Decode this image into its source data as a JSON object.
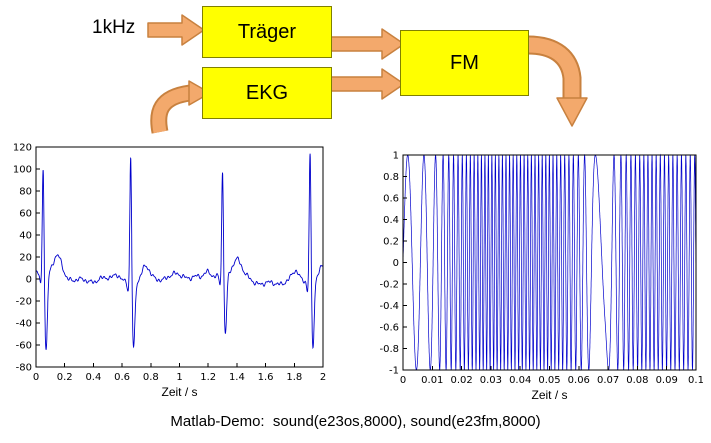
{
  "diagram": {
    "input_label": "1kHz",
    "blocks": {
      "traeger": "Träger",
      "ekg": "EKG",
      "fm": "FM"
    },
    "colors": {
      "box_fill": "#FFFF00",
      "box_border": "#808000",
      "arrow_fill": "#F3A96C",
      "arrow_border": "#C8813F"
    }
  },
  "caption": "Matlab-Demo:  sound(e23os,8000), sound(e23fm,8000)",
  "chart_data": [
    {
      "type": "line",
      "signal": "ekg",
      "title": "",
      "xlabel": "Zeit / s",
      "ylabel": "",
      "xlim": [
        0,
        2
      ],
      "ylim": [
        -80,
        120
      ],
      "xtick_values": [
        0,
        0.2,
        0.4,
        0.6,
        0.8,
        1,
        1.2,
        1.4,
        1.6,
        1.8,
        2
      ],
      "xtick_labels": [
        "0",
        "0.2",
        "0.4",
        "0.6",
        "0.8",
        "1",
        "1.2",
        "1.4",
        "1.6",
        "1.8",
        "2"
      ],
      "ytick_values": [
        -80,
        -60,
        -40,
        -20,
        0,
        20,
        40,
        60,
        80,
        100,
        120
      ],
      "ytick_labels": [
        "-80",
        "-60",
        "-40",
        "-20",
        "0",
        "20",
        "40",
        "60",
        "80",
        "100",
        "120"
      ],
      "line_color": "#0000CC",
      "grid": false,
      "qrs": {
        "times": [
          0.05,
          0.66,
          1.3,
          1.91
        ],
        "r_peaks": [
          103,
          118,
          97,
          120
        ],
        "s_troughs": [
          -70,
          -60,
          -55,
          -62
        ]
      }
    },
    {
      "type": "line",
      "signal": "fm",
      "title": "",
      "xlabel": "Zeit / s",
      "ylabel": "",
      "xlim": [
        0,
        0.1
      ],
      "ylim": [
        -1,
        1
      ],
      "xtick_values": [
        0,
        0.01,
        0.02,
        0.03,
        0.04,
        0.05,
        0.06,
        0.07,
        0.08,
        0.09,
        0.1
      ],
      "xtick_labels": [
        "0",
        "0.01",
        "0.02",
        "0.03",
        "0.04",
        "0.05",
        "0.06",
        "0.07",
        "0.08",
        "0.09",
        "0.1"
      ],
      "ytick_values": [
        -1,
        -0.8,
        -0.6,
        -0.4,
        -0.2,
        0,
        0.2,
        0.4,
        0.6,
        0.8,
        1
      ],
      "ytick_labels": [
        "-1",
        "-0.8",
        "-0.6",
        "-0.4",
        "-0.2",
        "0",
        "0.2",
        "0.4",
        "0.6",
        "0.8",
        "1"
      ],
      "line_color": "#0000CC",
      "grid": false,
      "amplitude": 1,
      "freq_profile": [
        [
          0,
          150
        ],
        [
          0.005,
          180
        ],
        [
          0.01,
          260
        ],
        [
          0.013,
          420
        ],
        [
          0.016,
          600
        ],
        [
          0.02,
          700
        ],
        [
          0.028,
          850
        ],
        [
          0.04,
          800
        ],
        [
          0.05,
          820
        ],
        [
          0.058,
          650
        ],
        [
          0.062,
          400
        ],
        [
          0.066,
          120
        ],
        [
          0.069,
          80
        ],
        [
          0.072,
          350
        ],
        [
          0.076,
          600
        ],
        [
          0.082,
          720
        ],
        [
          0.09,
          700
        ],
        [
          0.1,
          650
        ]
      ]
    }
  ]
}
